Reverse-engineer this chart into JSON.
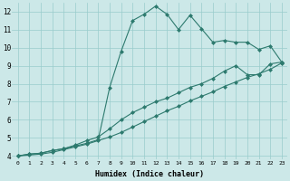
{
  "xlabel": "Humidex (Indice chaleur)",
  "ylabel": "",
  "bg_color": "#cce8e8",
  "grid_color": "#99cccc",
  "line_color": "#2d7a6e",
  "xlim": [
    -0.5,
    23.5
  ],
  "ylim": [
    3.8,
    12.5
  ],
  "xticks": [
    0,
    1,
    2,
    3,
    4,
    5,
    6,
    7,
    8,
    9,
    10,
    11,
    12,
    13,
    14,
    15,
    16,
    17,
    18,
    19,
    20,
    21,
    22,
    23
  ],
  "yticks": [
    4,
    5,
    6,
    7,
    8,
    9,
    10,
    11,
    12
  ],
  "line1_x": [
    0,
    1,
    2,
    3,
    4,
    5,
    6,
    7,
    8,
    9,
    10,
    11,
    12,
    13,
    14,
    15,
    16,
    17,
    18,
    19,
    20,
    21,
    22,
    23
  ],
  "line1_y": [
    4.0,
    4.1,
    4.15,
    4.3,
    4.4,
    4.55,
    4.7,
    4.9,
    7.8,
    9.8,
    11.5,
    11.85,
    12.3,
    11.85,
    11.0,
    11.8,
    11.05,
    10.3,
    10.4,
    10.3,
    10.3,
    9.9,
    10.1,
    9.2
  ],
  "line2_x": [
    0,
    1,
    2,
    3,
    4,
    5,
    6,
    7,
    8,
    9,
    10,
    11,
    12,
    13,
    14,
    15,
    16,
    17,
    18,
    19,
    20,
    21,
    22,
    23
  ],
  "line2_y": [
    4.0,
    4.1,
    4.15,
    4.3,
    4.4,
    4.6,
    4.85,
    5.05,
    5.5,
    6.0,
    6.4,
    6.7,
    7.0,
    7.2,
    7.5,
    7.8,
    8.0,
    8.3,
    8.7,
    9.0,
    8.5,
    8.5,
    9.1,
    9.2
  ],
  "line3_x": [
    0,
    1,
    2,
    3,
    4,
    5,
    6,
    7,
    8,
    9,
    10,
    11,
    12,
    13,
    14,
    15,
    16,
    17,
    18,
    19,
    20,
    21,
    22,
    23
  ],
  "line3_y": [
    4.0,
    4.05,
    4.1,
    4.2,
    4.35,
    4.5,
    4.65,
    4.85,
    5.05,
    5.3,
    5.6,
    5.9,
    6.2,
    6.5,
    6.75,
    7.05,
    7.3,
    7.55,
    7.85,
    8.1,
    8.35,
    8.55,
    8.8,
    9.15
  ],
  "marker": "D",
  "markersize": 2.0,
  "linewidth": 0.8
}
